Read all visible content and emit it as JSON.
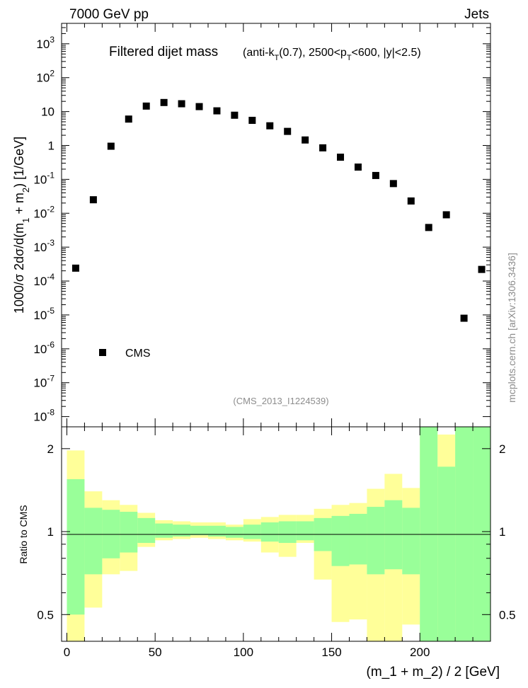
{
  "header": {
    "left": "7000 GeV pp",
    "right": "Jets"
  },
  "title": {
    "main": "Filtered dijet mass",
    "cut": "(anti-k_T(0.7), 2500<p_T<600, |y|<2.5)"
  },
  "ref_label": "(CMS_2013_I1224539)",
  "side_label": "mcplots.cern.ch [arXiv:1306.3436]",
  "legend": {
    "cms": "CMS"
  },
  "chart_data": [
    {
      "type": "scatter",
      "ylabel": "1000/σ 2dσ/d(m_1 + m_2) [1/GeV]",
      "yscale": "log",
      "xlim": [
        -3,
        240
      ],
      "ylim": [
        5e-09,
        4000
      ],
      "yticks": [
        "10^-8",
        "10^-7",
        "10^-6",
        "10^-5",
        "10^-4",
        "10^-3",
        "10^-2",
        "10^-1",
        "1",
        "10",
        "10^2",
        "10^3"
      ],
      "series": [
        {
          "name": "CMS",
          "x": [
            5,
            15,
            25,
            35,
            45,
            55,
            65,
            75,
            85,
            95,
            105,
            115,
            125,
            135,
            145,
            155,
            165,
            175,
            185,
            195,
            205,
            215,
            225,
            235
          ],
          "y": [
            0.00024,
            0.025,
            0.95,
            6.0,
            14.5,
            18.5,
            17.0,
            14.0,
            10.5,
            7.8,
            5.5,
            3.8,
            2.6,
            1.45,
            0.85,
            0.45,
            0.23,
            0.13,
            0.075,
            0.023,
            0.0038,
            0.009,
            8e-06,
            0.00022
          ]
        }
      ]
    },
    {
      "type": "area",
      "xlabel": "(m_1 + m_2) / 2 [GeV]",
      "ylabel": "Ratio to CMS",
      "yscale": "log",
      "xlim": [
        -3,
        240
      ],
      "ylim": [
        0.4,
        2.4
      ],
      "xticks": [
        0,
        50,
        100,
        150,
        200
      ],
      "yticks": [
        0.5,
        1,
        2
      ],
      "bins": [
        [
          0,
          10
        ],
        [
          10,
          20
        ],
        [
          20,
          30
        ],
        [
          30,
          40
        ],
        [
          40,
          50
        ],
        [
          50,
          60
        ],
        [
          60,
          70
        ],
        [
          70,
          80
        ],
        [
          80,
          90
        ],
        [
          90,
          100
        ],
        [
          100,
          110
        ],
        [
          110,
          120
        ],
        [
          120,
          130
        ],
        [
          130,
          140
        ],
        [
          140,
          150
        ],
        [
          150,
          160
        ],
        [
          160,
          170
        ],
        [
          170,
          180
        ],
        [
          180,
          190
        ],
        [
          190,
          200
        ],
        [
          200,
          210
        ],
        [
          210,
          220
        ],
        [
          220,
          230
        ],
        [
          230,
          240
        ]
      ],
      "band_total": {
        "colour": "#ffff99",
        "low": [
          0.4,
          0.53,
          0.7,
          0.72,
          0.88,
          0.93,
          0.94,
          0.95,
          0.94,
          0.93,
          0.92,
          0.84,
          0.81,
          0.91,
          0.67,
          0.47,
          0.48,
          0.4,
          0.4,
          0.46,
          0.4,
          0.4,
          0.4,
          0.4
        ],
        "high": [
          1.97,
          1.4,
          1.3,
          1.25,
          1.17,
          1.1,
          1.09,
          1.08,
          1.08,
          1.06,
          1.11,
          1.13,
          1.15,
          1.15,
          1.21,
          1.25,
          1.27,
          1.43,
          1.62,
          1.44,
          2.4,
          2.25,
          2.4,
          2.4
        ]
      },
      "band_stat": {
        "colour": "#99ff99",
        "low": [
          0.5,
          0.7,
          0.8,
          0.84,
          0.91,
          0.95,
          0.96,
          0.97,
          0.96,
          0.95,
          0.94,
          0.92,
          0.91,
          0.93,
          0.85,
          0.75,
          0.76,
          0.7,
          0.73,
          0.7,
          0.4,
          0.4,
          0.4,
          0.4
        ],
        "high": [
          1.55,
          1.22,
          1.2,
          1.18,
          1.12,
          1.07,
          1.06,
          1.05,
          1.05,
          1.04,
          1.06,
          1.08,
          1.09,
          1.09,
          1.12,
          1.14,
          1.16,
          1.23,
          1.3,
          1.22,
          2.4,
          1.72,
          2.4,
          2.4
        ]
      }
    }
  ]
}
